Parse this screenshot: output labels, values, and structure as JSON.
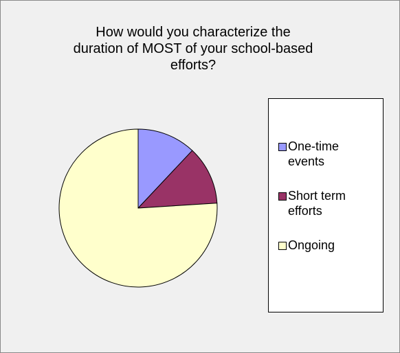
{
  "chart_data": {
    "type": "pie",
    "title": "How would you characterize the duration of MOST of your school-based efforts?",
    "categories": [
      "One-time events",
      "Short term efforts",
      "Ongoing"
    ],
    "values": [
      12,
      12,
      76
    ],
    "colors": [
      "#9999ff",
      "#993366",
      "#ffffcc"
    ],
    "legend": "right"
  }
}
